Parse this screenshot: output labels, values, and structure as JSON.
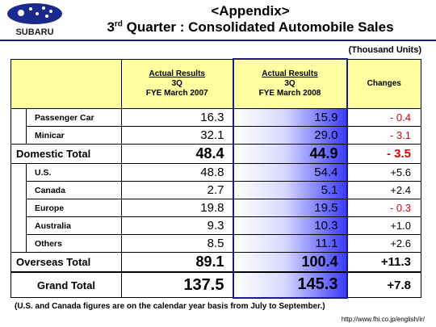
{
  "header": {
    "logo_text": "SUBARU",
    "title_line1": "<Appendix>",
    "title_line2_prefix": "3",
    "title_line2_sup": "rd",
    "title_line2_rest": " Quarter : Consolidated Automobile Sales"
  },
  "units": "(Thousand Units)",
  "table": {
    "col1": {
      "l1": "Actual Results",
      "l2": "3Q",
      "l3": "FYE March 2007"
    },
    "col2": {
      "l1": "Actual Results",
      "l2": "3Q",
      "l3": "FYE March 2008"
    },
    "col3": "Changes",
    "rows": {
      "passenger": {
        "label": "Passenger Car",
        "v1": "16.3",
        "v2": "15.9",
        "chg": "- 0.4"
      },
      "minicar": {
        "label": "Minicar",
        "v1": "32.1",
        "v2": "29.0",
        "chg": "- 3.1"
      },
      "domestic": {
        "label": "Domestic Total",
        "v1": "48.4",
        "v2": "44.9",
        "chg": "- 3.5"
      },
      "us": {
        "label": "U.S.",
        "v1": "48.8",
        "v2": "54.4",
        "chg": "+5.6"
      },
      "canada": {
        "label": "Canada",
        "v1": "2.7",
        "v2": "5.1",
        "chg": "+2.4"
      },
      "europe": {
        "label": "Europe",
        "v1": "19.8",
        "v2": "19.5",
        "chg": "- 0.3"
      },
      "australia": {
        "label": "Australia",
        "v1": "9.3",
        "v2": "10.3",
        "chg": "+1.0"
      },
      "others": {
        "label": "Others",
        "v1": "8.5",
        "v2": "11.1",
        "chg": "+2.6"
      },
      "overseas": {
        "label": "Overseas Total",
        "v1": "89.1",
        "v2": "100.4",
        "chg": "+11.3"
      },
      "grand": {
        "label": "Grand Total",
        "v1": "137.5",
        "v2": "145.3",
        "chg": "+7.8"
      }
    }
  },
  "footnote": "(U.S. and Canada figures are on the calendar year basis from July to September.)",
  "url": "http://www.fhi.co.jp/english/ir/",
  "colors": {
    "title_navy": "#1a1a8c",
    "header_yellow": "#ffffa0",
    "negative_red": "#e00000",
    "highlight_blue": "#3a3aff"
  }
}
